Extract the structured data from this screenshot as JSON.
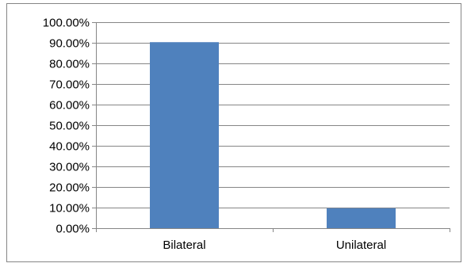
{
  "chart_data": {
    "type": "bar",
    "title": "",
    "xlabel": "",
    "ylabel": "",
    "categories": [
      "Bilateral",
      "Unilateral"
    ],
    "values": [
      90.3,
      9.7
    ],
    "ylim": [
      0,
      100
    ],
    "yticks": [
      0,
      10,
      20,
      30,
      40,
      50,
      60,
      70,
      80,
      90,
      100
    ],
    "ytick_labels": [
      "0.00%",
      "10.00%",
      "20.00%",
      "30.00%",
      "40.00%",
      "50.00%",
      "60.00%",
      "70.00%",
      "80.00%",
      "90.00%",
      "100.00%"
    ],
    "grid": true,
    "legend": "none",
    "bar_color": "#4F81BD",
    "grid_color": "#868686"
  }
}
